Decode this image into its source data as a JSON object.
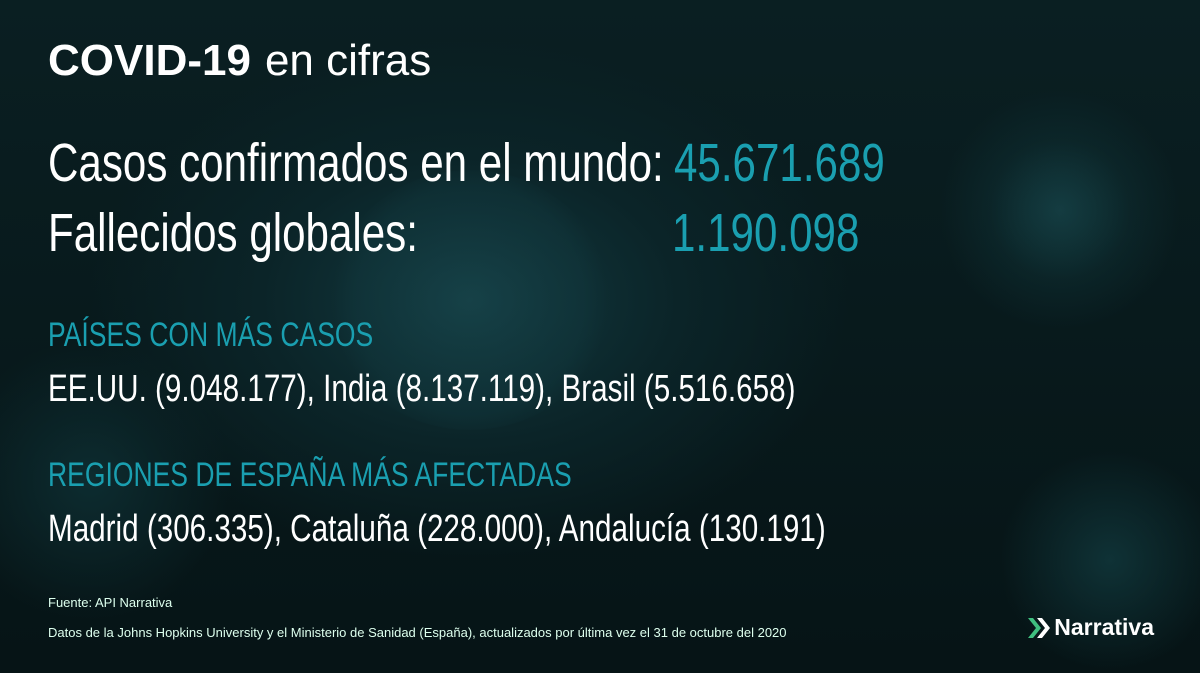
{
  "title": {
    "bold": "COVID-19",
    "rest": "en cifras"
  },
  "stats": {
    "confirmed_label": "Casos confirmados en el mundo:",
    "confirmed_value": "45.671.689",
    "deaths_label": "Fallecidos globales:",
    "deaths_value": "1.190.098"
  },
  "countries": {
    "heading": "PAÍSES CON MÁS CASOS",
    "text": "EE.UU. (9.048.177), India (8.137.119), Brasil (5.516.658)"
  },
  "regions": {
    "heading": "REGIONES DE ESPAÑA MÁS AFECTADAS",
    "text": "Madrid (306.335), Cataluña (228.000), Andalucía (130.191)"
  },
  "footer": {
    "source": "Fuente: API Narrativa",
    "note": "Datos de la Johns Hopkins University y el Ministerio de Sanidad (España), actualizados por última vez el 31 de octubre del 2020"
  },
  "logo": {
    "text": "Narrativa"
  },
  "colors": {
    "accent": "#1a9fb0",
    "logo_green": "#3fbf7f"
  }
}
